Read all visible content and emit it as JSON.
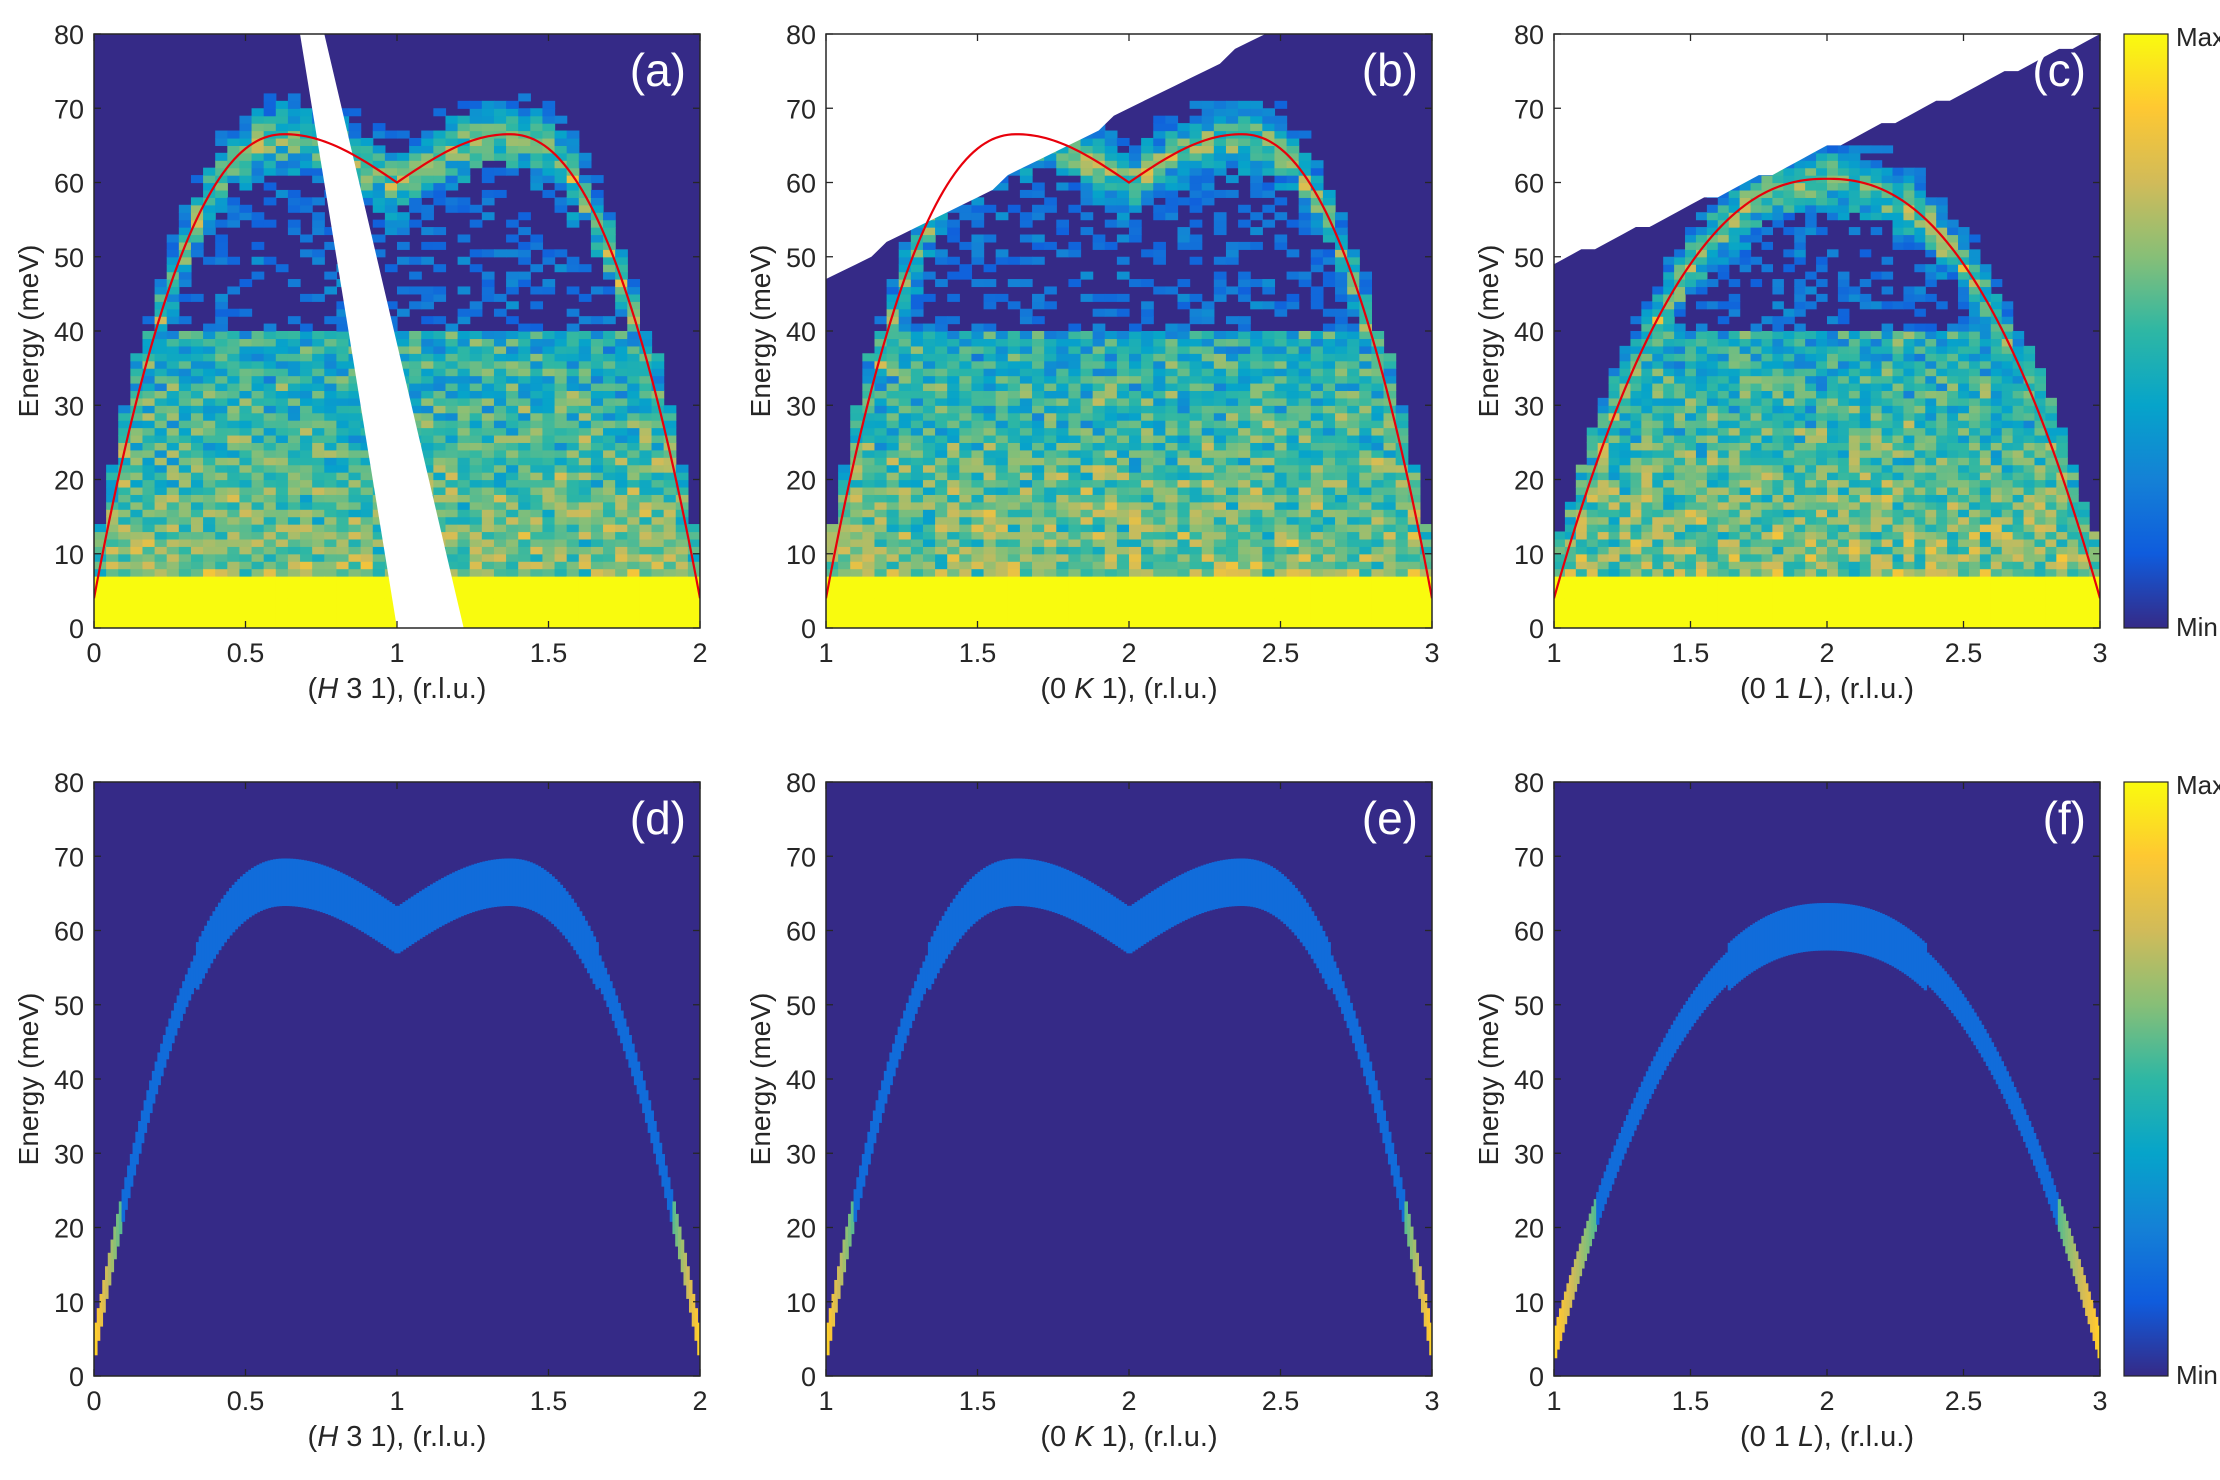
{
  "colorbar": {
    "max_label": "Max",
    "min_label": "Min"
  },
  "chart_data": [
    {
      "id": "a",
      "panel_label": "(a)",
      "type": "heatmap",
      "variant": "measured",
      "ylabel": "Energy (meV)",
      "xlabel": {
        "pre": "(",
        "italic": "H",
        "post": " 3 1), (r.l.u.)"
      },
      "xlim": [
        0,
        2
      ],
      "ylim": [
        0,
        80
      ],
      "xticks": [
        0,
        0.5,
        1,
        1.5,
        2
      ],
      "xtick_labels": [
        "0",
        "0.5",
        "1",
        "1.5",
        "2"
      ],
      "yticks": [
        0,
        10,
        20,
        30,
        40,
        50,
        60,
        70,
        80
      ],
      "ytick_labels": [
        "0",
        "10",
        "20",
        "30",
        "40",
        "50",
        "60",
        "70",
        "80"
      ],
      "dispersion": "hk",
      "white_band": {
        "top": [
          [
            0.68,
            80
          ],
          [
            0.76,
            80
          ],
          [
            1.22,
            0
          ],
          [
            1.0,
            0
          ]
        ]
      },
      "upper_mask": null,
      "fit_curve": {
        "color": "#e8000b"
      }
    },
    {
      "id": "b",
      "panel_label": "(b)",
      "type": "heatmap",
      "variant": "measured",
      "ylabel": "Energy (meV)",
      "xlabel": {
        "pre": "(0 ",
        "italic": "K",
        "post": " 1), (r.l.u.)"
      },
      "xlim": [
        1,
        3
      ],
      "ylim": [
        0,
        80
      ],
      "xticks": [
        1,
        1.5,
        2,
        2.5,
        3
      ],
      "xtick_labels": [
        "1",
        "1.5",
        "2",
        "2.5",
        "3"
      ],
      "yticks": [
        0,
        10,
        20,
        30,
        40,
        50,
        60,
        70,
        80
      ],
      "ytick_labels": [
        "0",
        "10",
        "20",
        "30",
        "40",
        "50",
        "60",
        "70",
        "80"
      ],
      "dispersion": "hk",
      "upper_mask": {
        "x": [
          1.0,
          3.0
        ],
        "y": [
          47,
          81
        ]
      },
      "fit_curve": {
        "color": "#e8000b"
      }
    },
    {
      "id": "c",
      "panel_label": "(c)",
      "type": "heatmap",
      "variant": "measured",
      "ylabel": "Energy (meV)",
      "xlabel": {
        "pre": "(0 1 ",
        "italic": "L",
        "post": "), (r.l.u.)"
      },
      "xlim": [
        1,
        3
      ],
      "ylim": [
        0,
        80
      ],
      "xticks": [
        1,
        1.5,
        2,
        2.5,
        3
      ],
      "xtick_labels": [
        "1",
        "1.5",
        "2",
        "2.5",
        "3"
      ],
      "yticks": [
        0,
        10,
        20,
        30,
        40,
        50,
        60,
        70,
        80
      ],
      "ytick_labels": [
        "0",
        "10",
        "20",
        "30",
        "40",
        "50",
        "60",
        "70",
        "80"
      ],
      "dispersion": "l",
      "upper_mask": {
        "x": [
          1.0,
          3.0
        ],
        "y": [
          49,
          80
        ]
      },
      "fit_curve": {
        "color": "#e8000b"
      }
    },
    {
      "id": "d",
      "panel_label": "(d)",
      "type": "heatmap",
      "variant": "calculated",
      "ylabel": "Energy (meV)",
      "xlabel": {
        "pre": "(",
        "italic": "H",
        "post": " 3 1), (r.l.u.)"
      },
      "xlim": [
        0,
        2
      ],
      "ylim": [
        0,
        80
      ],
      "xticks": [
        0,
        0.5,
        1,
        1.5,
        2
      ],
      "xtick_labels": [
        "0",
        "0.5",
        "1",
        "1.5",
        "2"
      ],
      "yticks": [
        0,
        10,
        20,
        30,
        40,
        50,
        60,
        70,
        80
      ],
      "ytick_labels": [
        "0",
        "10",
        "20",
        "30",
        "40",
        "50",
        "60",
        "70",
        "80"
      ],
      "dispersion": "hk"
    },
    {
      "id": "e",
      "panel_label": "(e)",
      "type": "heatmap",
      "variant": "calculated",
      "ylabel": "Energy (meV)",
      "xlabel": {
        "pre": "(0 ",
        "italic": "K",
        "post": " 1), (r.l.u.)"
      },
      "xlim": [
        1,
        3
      ],
      "ylim": [
        0,
        80
      ],
      "xticks": [
        1,
        1.5,
        2,
        2.5,
        3
      ],
      "xtick_labels": [
        "1",
        "1.5",
        "2",
        "2.5",
        "3"
      ],
      "yticks": [
        0,
        10,
        20,
        30,
        40,
        50,
        60,
        70,
        80
      ],
      "ytick_labels": [
        "0",
        "10",
        "20",
        "30",
        "40",
        "50",
        "60",
        "70",
        "80"
      ],
      "dispersion": "hk"
    },
    {
      "id": "f",
      "panel_label": "(f)",
      "type": "heatmap",
      "variant": "calculated",
      "ylabel": "Energy (meV)",
      "xlabel": {
        "pre": "(0 1 ",
        "italic": "L",
        "post": "), (r.l.u.)"
      },
      "xlim": [
        1,
        3
      ],
      "ylim": [
        0,
        80
      ],
      "xticks": [
        1,
        1.5,
        2,
        2.5,
        3
      ],
      "xtick_labels": [
        "1",
        "1.5",
        "2",
        "2.5",
        "3"
      ],
      "yticks": [
        0,
        10,
        20,
        30,
        40,
        50,
        60,
        70,
        80
      ],
      "ytick_labels": [
        "0",
        "10",
        "20",
        "30",
        "40",
        "50",
        "60",
        "70",
        "80"
      ],
      "dispersion": "l"
    }
  ],
  "dispersion_models": {
    "hk": {
      "description_points": [
        [
          0,
          4
        ],
        [
          0.63,
          66.5
        ],
        [
          1.0,
          60
        ],
        [
          1.37,
          66.5
        ],
        [
          2.0,
          4
        ]
      ]
    },
    "l": {
      "description_points": [
        [
          1,
          4
        ],
        [
          2,
          60.5
        ],
        [
          3,
          4
        ]
      ]
    }
  },
  "colors": {
    "min": "#352a87",
    "max": "#f9fb0e",
    "parula_stops": [
      "#352a87",
      "#0f5cdd",
      "#1481d6",
      "#06a4ca",
      "#2eb7a4",
      "#87bf77",
      "#d1bb59",
      "#fec832",
      "#f9fb0e"
    ]
  }
}
